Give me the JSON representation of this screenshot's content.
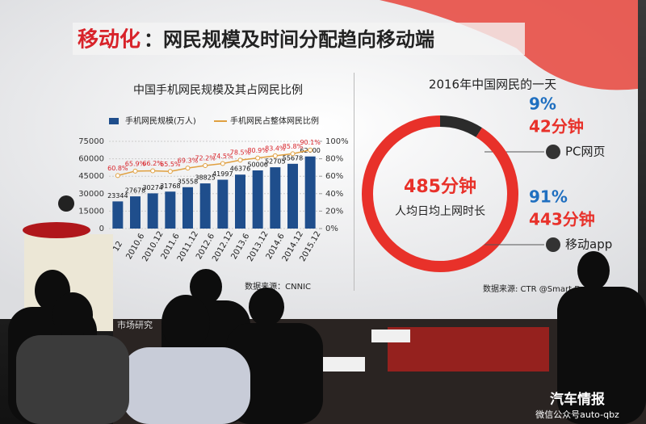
{
  "slide": {
    "title_highlight": "移动化",
    "title_rest": "：网民规模及时间分配趋向移动端",
    "footer": "市场研究"
  },
  "chart_data": [
    {
      "type": "bar-line",
      "title": "中国手机网民规模及其占网民比例",
      "categories": [
        "12",
        "2010.6",
        "2010.12",
        "2011.6",
        "2011.12",
        "2012.6",
        "2012.12",
        "2013.6",
        "2013.12",
        "2014.6",
        "2014.12",
        "2015.12"
      ],
      "series": [
        {
          "name": "手机网民规模(万人)",
          "color": "#1f4e8c",
          "values": [
            23344,
            27678,
            30274,
            31768,
            35558,
            38825,
            41997,
            46376,
            50006,
            52705,
            55678,
            62000
          ]
        },
        {
          "name": "手机网民占整体网民比例",
          "color": "#e0a040",
          "axis": "y2",
          "values": [
            60.8,
            65.9,
            66.2,
            65.5,
            69.3,
            72.2,
            74.5,
            78.5,
            80.9,
            83.4,
            85.8,
            90.1
          ],
          "value_labels": [
            "60.8%",
            "65.9%",
            "66.2%",
            "65.5%",
            "69.3%",
            "72.2%",
            "74.5%",
            "78.5%",
            "80.9%",
            "83.4%",
            "85.8%",
            "90.1%"
          ]
        }
      ],
      "ylim": [
        0,
        75000
      ],
      "yticks": [
        0,
        15000,
        30000,
        45000,
        60000,
        75000
      ],
      "y2lim": [
        0,
        100
      ],
      "y2ticks": [
        {
          "value": 0,
          "label": "0%"
        },
        {
          "value": 20,
          "label": "20%"
        },
        {
          "value": 40,
          "label": "40%"
        },
        {
          "value": 60,
          "label": "60%"
        },
        {
          "value": 80,
          "label": "80%"
        },
        {
          "value": 100,
          "label": "100%"
        }
      ],
      "source": "数据来源：CNNIC"
    },
    {
      "type": "donut",
      "title": "2016年中国网民的一天",
      "center_value": "485分钟",
      "center_label": "人均日均上网时长",
      "series": [
        {
          "name": "PC网页",
          "color": "#2b2b2b",
          "values": [
            9
          ],
          "value_labels": [
            "9%"
          ],
          "detail": "42分钟"
        },
        {
          "name": "移动app",
          "color": "#e8312a",
          "values": [
            91
          ],
          "value_labels": [
            "91%"
          ],
          "detail": "443分钟"
        }
      ],
      "source": "数据来源: CTR @Smart D"
    }
  ],
  "watermark": {
    "title": "汽车情报",
    "subtitle": "微信公众号auto-qbz"
  }
}
